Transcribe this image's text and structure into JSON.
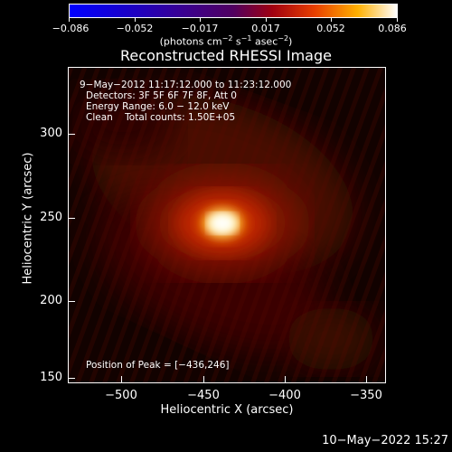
{
  "colorbar": {
    "ticks": [
      "−0.086",
      "−0.052",
      "−0.017",
      "0.017",
      "0.052",
      "0.086"
    ],
    "units_prefix": "(photons cm",
    "units_exp1": "−2",
    "units_mid": " s",
    "units_exp2": "−1",
    "units_mid2": " asec",
    "units_exp3": "−2",
    "units_suffix": ")",
    "range": [
      -0.086,
      0.086
    ]
  },
  "title": "Reconstructed RHESSI Image",
  "annotations": {
    "time_range": "9−May−2012 11:17:12.000 to 11:23:12.000",
    "detectors": "Detectors: 3F 5F 6F 7F 8F, Att 0",
    "energy": "Energy Range: 6.0 − 12.0 keV",
    "clean": "Clean    Total counts: 1.50E+05",
    "peak": "Position of Peak = [−436,246]"
  },
  "axes": {
    "x_title": "Heliocentric X (arcsec)",
    "y_title": "Heliocentric Y (arcsec)",
    "x_ticks": [
      "−500",
      "−450",
      "−400",
      "−350"
    ],
    "y_ticks": [
      "300",
      "250",
      "200",
      "150"
    ],
    "x_range": [
      -530,
      -335
    ],
    "y_range": [
      147,
      340
    ]
  },
  "peak_position": [
    -436,
    246
  ],
  "timestamp": "10−May−2022 15:27"
}
